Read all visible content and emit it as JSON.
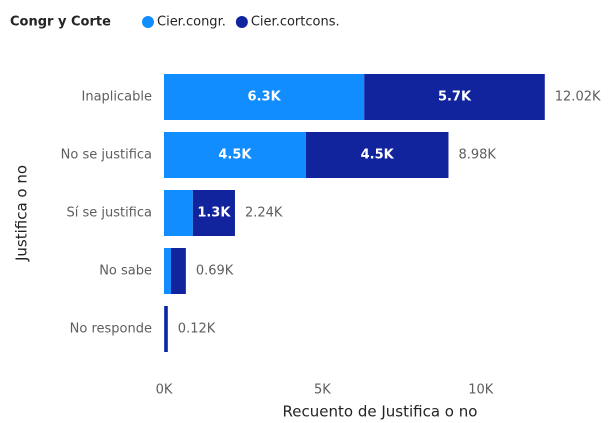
{
  "chart_data": {
    "type": "stacked-bar-horizontal",
    "legend_title": "Congr y Corte",
    "x_label": "Recuento de Justifica o no",
    "y_label": "Justifica o no",
    "categories": [
      "Inaplicable",
      "No se justifica",
      "Sí se justifica",
      "No sabe",
      "No responde"
    ],
    "series": [
      {
        "name": "Cier.congr.",
        "color": "#118dff",
        "values": [
          6320,
          4480,
          910,
          220,
          10
        ],
        "value_labels": [
          "6.3K",
          "4.5K",
          null,
          null,
          null
        ]
      },
      {
        "name": "Cier.cortcons.",
        "color": "#12239e",
        "values": [
          5700,
          4500,
          1330,
          470,
          110
        ],
        "value_labels": [
          "5.7K",
          "4.5K",
          "1.3K",
          null,
          null
        ]
      }
    ],
    "totals": [
      12020,
      8980,
      2240,
      690,
      120
    ],
    "total_labels": [
      "12.02K",
      "8.98K",
      "2.24K",
      "0.69K",
      "0.12K"
    ],
    "xlim": [
      0,
      13700
    ],
    "xticks": [
      {
        "value": 0,
        "label": "0K"
      },
      {
        "value": 5000,
        "label": "5K"
      },
      {
        "value": 10000,
        "label": "10K"
      }
    ]
  }
}
